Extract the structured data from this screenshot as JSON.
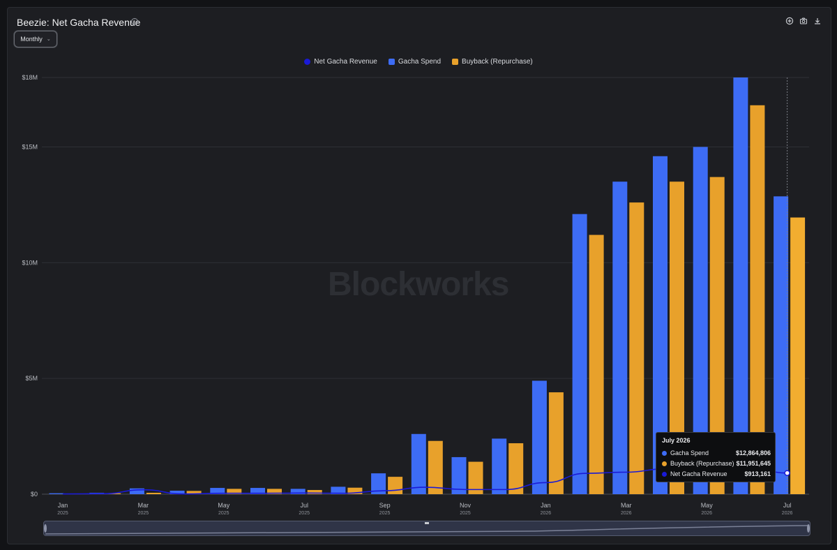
{
  "header": {
    "title": "Beezie: Net Gacha Revenue",
    "info_icon": "ⓘ",
    "period": "Monthly",
    "tools": [
      "plus-circle-icon",
      "camera-icon",
      "download-icon"
    ]
  },
  "legend": [
    {
      "name": "Net Gacha Revenue",
      "color": "#1a1ad6"
    },
    {
      "name": "Gacha Spend",
      "color": "#3d6cf5"
    },
    {
      "name": "Buyback (Repurchase)",
      "color": "#e8a12b"
    }
  ],
  "watermark": "Blockworks",
  "tooltip": {
    "title": "July 2026",
    "rows": [
      {
        "name": "Gacha Spend",
        "value": "$12,864,806",
        "color": "#3d6cf5"
      },
      {
        "name": "Buyback (Repurchase)",
        "value": "$11,951,645",
        "color": "#e8a12b"
      },
      {
        "name": "Net Gacha Revenue",
        "value": "$913,161",
        "color": "#1a1ad6"
      }
    ]
  },
  "chart_data": {
    "type": "bar",
    "categories": [
      "Jan 2025",
      "Feb 2025",
      "Mar 2025",
      "Apr 2025",
      "May 2025",
      "Jun 2025",
      "Jul 2025",
      "Aug 2025",
      "Sep 2025",
      "Oct 2025",
      "Nov 2025",
      "Dec 2025",
      "Jan 2026",
      "Feb 2026",
      "Mar 2026",
      "Apr 2026",
      "May 2026",
      "Jun 2026",
      "Jul 2026"
    ],
    "x_tick_labels": [
      {
        "month": "Jan",
        "year": "2025",
        "index": 0
      },
      {
        "month": "Mar",
        "year": "2025",
        "index": 2
      },
      {
        "month": "May",
        "year": "2025",
        "index": 4
      },
      {
        "month": "Jul",
        "year": "2025",
        "index": 6
      },
      {
        "month": "Sep",
        "year": "2025",
        "index": 8
      },
      {
        "month": "Nov",
        "year": "2025",
        "index": 10
      },
      {
        "month": "Jan",
        "year": "2026",
        "index": 12
      },
      {
        "month": "Mar",
        "year": "2026",
        "index": 14
      },
      {
        "month": "May",
        "year": "2026",
        "index": 16
      },
      {
        "month": "Jul",
        "year": "2026",
        "index": 18
      }
    ],
    "y_ticks": [
      {
        "value": 0,
        "label": "$0"
      },
      {
        "value": 5000000,
        "label": "$5M"
      },
      {
        "value": 10000000,
        "label": "$10M"
      },
      {
        "value": 15000000,
        "label": "$15M"
      },
      {
        "value": 18000000,
        "label": "$18M"
      }
    ],
    "ylim": [
      0,
      18000000
    ],
    "grid": true,
    "legend_position": "top-center",
    "series": [
      {
        "name": "Gacha Spend",
        "type": "bar",
        "color": "#3d6cf5",
        "values": [
          40000,
          60000,
          250000,
          150000,
          270000,
          270000,
          230000,
          320000,
          900000,
          2600000,
          1600000,
          2400000,
          4900000,
          12100000,
          13500000,
          14600000,
          15000000,
          18000000,
          12864806
        ]
      },
      {
        "name": "Buyback (Repurchase)",
        "type": "bar",
        "color": "#e8a12b",
        "values": [
          30000,
          40000,
          60000,
          140000,
          230000,
          230000,
          180000,
          280000,
          750000,
          2300000,
          1400000,
          2200000,
          4400000,
          11200000,
          12600000,
          13500000,
          13700000,
          16800000,
          11951645
        ]
      },
      {
        "name": "Net Gacha Revenue",
        "type": "line",
        "color": "#1a1ad6",
        "values": [
          10000,
          20000,
          190000,
          10000,
          40000,
          40000,
          50000,
          40000,
          150000,
          300000,
          200000,
          200000,
          500000,
          900000,
          950000,
          1100000,
          1300000,
          1200000,
          913161
        ]
      }
    ]
  }
}
